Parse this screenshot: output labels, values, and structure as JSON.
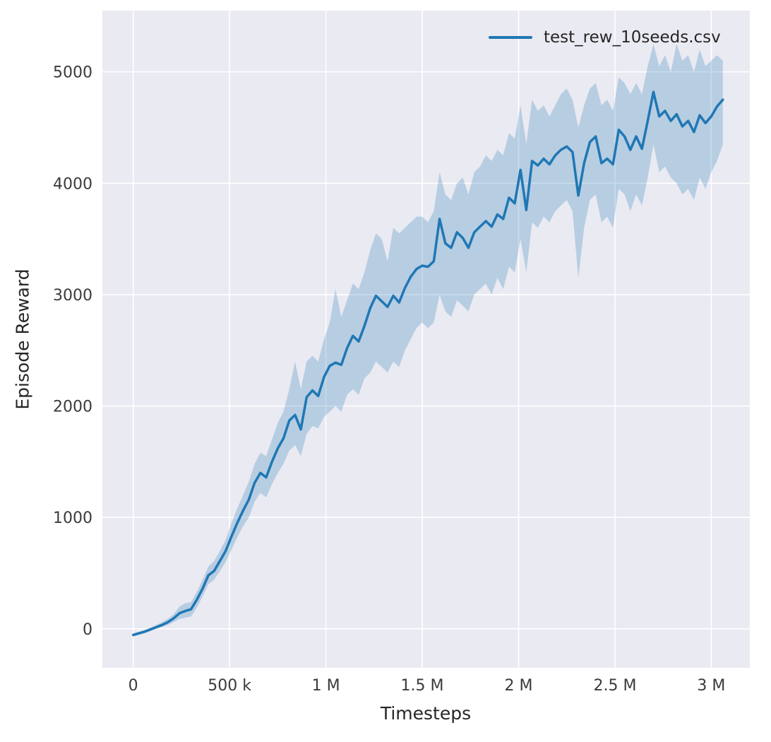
{
  "figure": {
    "background": "#ffffff",
    "axes_background": "#eaeaf2",
    "grid_color": "#ffffff",
    "text_color": "#262626",
    "tick_color": "#3b3b3b"
  },
  "axes": {
    "xlabel": "Timesteps",
    "ylabel": "Episode Reward"
  },
  "legend": {
    "label": "test_rew_10seeds.csv",
    "line_color": "#1f77b4"
  },
  "chart_data": {
    "type": "line",
    "title": "",
    "xlabel": "Timesteps",
    "ylabel": "Episode Reward",
    "legend_entries": [
      "test_rew_10seeds.csv"
    ],
    "legend_position": "upper right",
    "grid": true,
    "xlim": [
      -160000,
      3200000
    ],
    "ylim": [
      -350,
      5550
    ],
    "xticks": [
      {
        "value": 0,
        "label": "0"
      },
      {
        "value": 500000,
        "label": "500 k"
      },
      {
        "value": 1000000,
        "label": "1 M"
      },
      {
        "value": 1500000,
        "label": "1.5 M"
      },
      {
        "value": 2000000,
        "label": "2 M"
      },
      {
        "value": 2500000,
        "label": "2.5 M"
      },
      {
        "value": 3000000,
        "label": "3 M"
      }
    ],
    "yticks": [
      {
        "value": 0,
        "label": "0"
      },
      {
        "value": 1000,
        "label": "1000"
      },
      {
        "value": 2000,
        "label": "2000"
      },
      {
        "value": 3000,
        "label": "3000"
      },
      {
        "value": 4000,
        "label": "4000"
      },
      {
        "value": 5000,
        "label": "5000"
      }
    ],
    "series": [
      {
        "name": "test_rew_10seeds.csv",
        "color": "#1f77b4",
        "band_color": "rgba(31,119,180,0.25)",
        "x": [
          0,
          30000,
          60000,
          90000,
          120000,
          150000,
          180000,
          210000,
          240000,
          270000,
          300000,
          330000,
          360000,
          390000,
          420000,
          450000,
          480000,
          510000,
          540000,
          570000,
          600000,
          630000,
          660000,
          690000,
          720000,
          750000,
          780000,
          810000,
          840000,
          870000,
          900000,
          930000,
          960000,
          990000,
          1020000,
          1050000,
          1080000,
          1110000,
          1140000,
          1170000,
          1200000,
          1230000,
          1260000,
          1290000,
          1320000,
          1350000,
          1380000,
          1410000,
          1440000,
          1470000,
          1500000,
          1530000,
          1560000,
          1590000,
          1620000,
          1650000,
          1680000,
          1710000,
          1740000,
          1770000,
          1800000,
          1830000,
          1860000,
          1890000,
          1920000,
          1950000,
          1980000,
          2010000,
          2040000,
          2070000,
          2100000,
          2130000,
          2160000,
          2190000,
          2220000,
          2250000,
          2280000,
          2310000,
          2340000,
          2370000,
          2400000,
          2430000,
          2460000,
          2490000,
          2520000,
          2550000,
          2580000,
          2610000,
          2640000,
          2670000,
          2700000,
          2730000,
          2760000,
          2790000,
          2820000,
          2850000,
          2880000,
          2910000,
          2940000,
          2970000,
          3000000,
          3030000,
          3060000
        ],
        "mean": [
          -55,
          -40,
          -25,
          -5,
          15,
          35,
          60,
          95,
          140,
          160,
          175,
          260,
          360,
          480,
          520,
          610,
          700,
          830,
          950,
          1060,
          1160,
          1310,
          1400,
          1360,
          1500,
          1620,
          1710,
          1870,
          1920,
          1790,
          2080,
          2140,
          2090,
          2260,
          2360,
          2390,
          2370,
          2520,
          2630,
          2580,
          2720,
          2880,
          2990,
          2940,
          2890,
          2990,
          2930,
          3060,
          3160,
          3230,
          3260,
          3250,
          3300,
          3680,
          3460,
          3420,
          3560,
          3510,
          3420,
          3560,
          3610,
          3660,
          3610,
          3720,
          3680,
          3870,
          3820,
          4120,
          3760,
          4200,
          4160,
          4220,
          4170,
          4250,
          4300,
          4330,
          4280,
          3890,
          4180,
          4370,
          4420,
          4180,
          4220,
          4170,
          4480,
          4420,
          4300,
          4420,
          4310,
          4560,
          4820,
          4600,
          4650,
          4560,
          4620,
          4510,
          4560,
          4460,
          4610,
          4540,
          4600,
          4690,
          4750
        ],
        "band_lower": [
          -70,
          -55,
          -40,
          -20,
          0,
          15,
          35,
          60,
          90,
          100,
          110,
          190,
          290,
          400,
          440,
          520,
          600,
          710,
          820,
          920,
          1000,
          1140,
          1220,
          1180,
          1300,
          1400,
          1480,
          1600,
          1650,
          1550,
          1750,
          1820,
          1800,
          1900,
          1950,
          2000,
          1950,
          2100,
          2150,
          2100,
          2250,
          2300,
          2400,
          2350,
          2300,
          2400,
          2350,
          2500,
          2600,
          2700,
          2750,
          2700,
          2750,
          3000,
          2850,
          2800,
          2950,
          2900,
          2850,
          3000,
          3050,
          3100,
          3000,
          3150,
          3050,
          3250,
          3200,
          3500,
          3200,
          3650,
          3600,
          3700,
          3650,
          3750,
          3800,
          3850,
          3750,
          3150,
          3600,
          3850,
          3900,
          3650,
          3700,
          3600,
          3950,
          3900,
          3750,
          3900,
          3800,
          4050,
          4350,
          4100,
          4150,
          4050,
          4000,
          3900,
          3950,
          3850,
          4050,
          3950,
          4100,
          4200,
          4350
        ],
        "band_upper": [
          -40,
          -30,
          -10,
          10,
          35,
          60,
          90,
          130,
          200,
          230,
          240,
          330,
          440,
          560,
          610,
          700,
          800,
          950,
          1080,
          1200,
          1320,
          1480,
          1580,
          1550,
          1700,
          1850,
          1950,
          2150,
          2400,
          2150,
          2400,
          2450,
          2400,
          2600,
          2750,
          3050,
          2800,
          2950,
          3100,
          3050,
          3200,
          3400,
          3550,
          3500,
          3300,
          3600,
          3550,
          3600,
          3650,
          3700,
          3700,
          3650,
          3750,
          4100,
          3900,
          3850,
          4000,
          4050,
          3900,
          4100,
          4150,
          4250,
          4200,
          4300,
          4250,
          4450,
          4400,
          4700,
          4350,
          4750,
          4650,
          4700,
          4600,
          4700,
          4800,
          4850,
          4750,
          4500,
          4700,
          4850,
          4900,
          4700,
          4750,
          4650,
          4950,
          4900,
          4800,
          4900,
          4800,
          5050,
          5250,
          5050,
          5150,
          5000,
          5250,
          5100,
          5150,
          5000,
          5200,
          5050,
          5100,
          5150,
          5100
        ]
      }
    ]
  }
}
